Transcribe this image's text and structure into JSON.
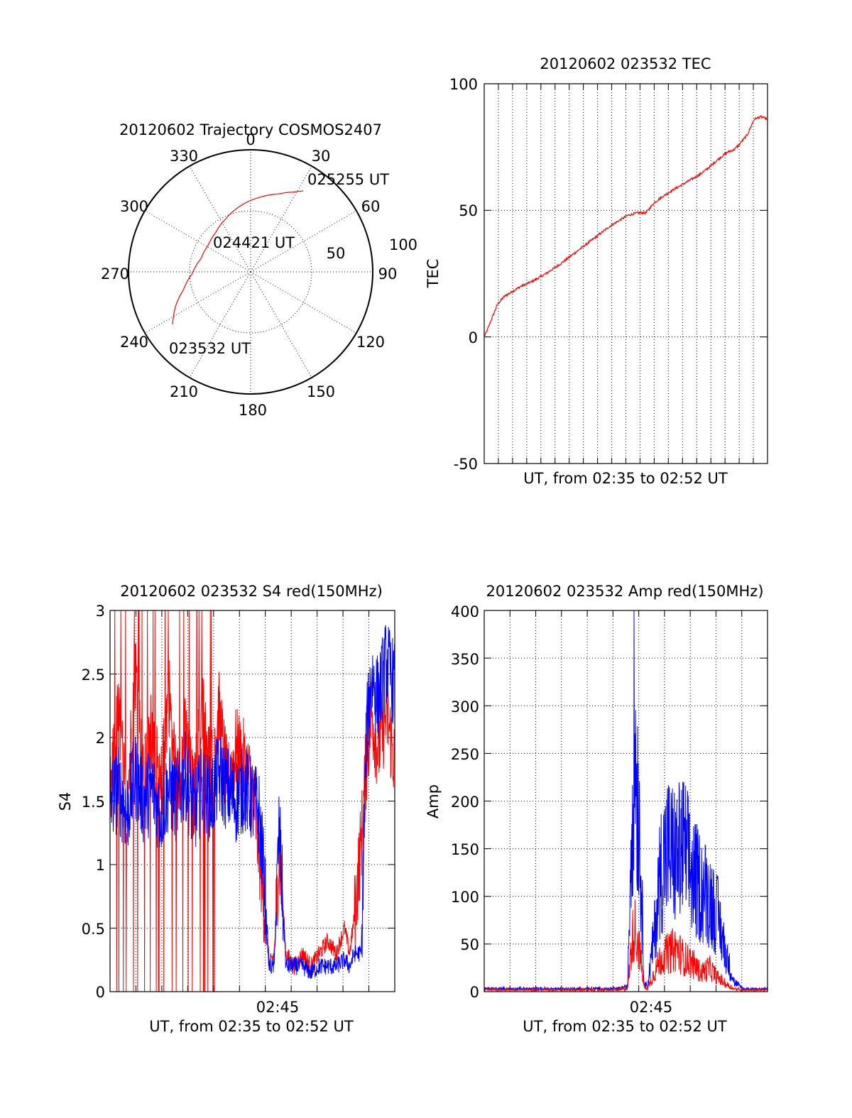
{
  "polar": {
    "title": "20120602 Trajectory COSMOS2407",
    "azimuth_labels": [
      "0",
      "30",
      "60",
      "90",
      "120",
      "150",
      "180",
      "210",
      "240",
      "270",
      "300",
      "330"
    ],
    "ring_labels": [
      "50",
      "100"
    ],
    "start_label": "023532 UT",
    "mid_label": "024421 UT",
    "end_label": "025255 UT",
    "trajectory_color": "#ff0000"
  },
  "tec": {
    "title": "20120602 023532 TEC",
    "ylabel": "TEC",
    "xlabel": "UT, from 02:35 to 02:52 UT",
    "yticks": [
      "-50",
      "0",
      "50",
      "100"
    ]
  },
  "s4": {
    "title": "20120602 023532 S4 red(150MHz)",
    "ylabel": "S4",
    "xlabel": "UT, from 02:35 to 02:52 UT",
    "xtick": "02:45",
    "yticks": [
      "0",
      "0.5",
      "1",
      "1.5",
      "2",
      "2.5",
      "3"
    ]
  },
  "amp": {
    "title": "20120602 023532 Amp red(150MHz)",
    "ylabel": "Amp",
    "xlabel": "UT, from 02:35 to 02:52 UT",
    "xtick": "02:45",
    "yticks": [
      "0",
      "50",
      "100",
      "150",
      "200",
      "250",
      "300",
      "350",
      "400"
    ]
  },
  "chart_data": [
    {
      "type": "polar",
      "title": "20120602 Trajectory COSMOS2407",
      "r_range": [
        0,
        100
      ],
      "rings": [
        50,
        100
      ],
      "theta_labels_deg": [
        0,
        30,
        60,
        90,
        120,
        150,
        180,
        210,
        240,
        270,
        300,
        330
      ],
      "series": [
        {
          "color": "#ff0000",
          "azimuth_deg": [
            236,
            245,
            255,
            268,
            285,
            302,
            318,
            335,
            352,
            8,
            20,
            28,
            33
          ],
          "radius": [
            77,
            68,
            57,
            48,
            42,
            41,
            43,
            48,
            55,
            62,
            68,
            74,
            79
          ]
        }
      ],
      "annotations": [
        "023532 UT",
        "024421 UT",
        "025255 UT"
      ]
    },
    {
      "type": "line",
      "title": "20120602 023532 TEC",
      "xlabel": "UT, from 02:35 to 02:52 UT",
      "ylabel": "TEC",
      "ylim": [
        -50,
        100
      ],
      "x_range_min": [
        0,
        17
      ],
      "grid": true,
      "series": [
        {
          "color": "#ff0000",
          "x_min": [
            0.0,
            0.2,
            0.5,
            0.8,
            1.2,
            1.7,
            2.2,
            2.9,
            3.7,
            4.6,
            5.6,
            6.6,
            7.6,
            8.6,
            9.2,
            9.7,
            10.2,
            10.6,
            11.3,
            12.1,
            12.9,
            13.5,
            14.0,
            14.6,
            15.0,
            15.3,
            15.8,
            16.2,
            16.6,
            17.0
          ],
          "y": [
            0,
            3,
            8,
            13,
            16,
            18,
            20,
            22,
            25,
            29,
            34,
            39,
            44,
            48,
            49,
            49,
            53,
            55,
            58,
            61,
            64,
            67,
            70,
            73,
            74,
            76,
            80,
            86,
            87,
            86
          ]
        }
      ]
    },
    {
      "type": "line",
      "title": "20120602 023532 S4 red(150MHz)",
      "xlabel": "UT, from 02:35 to 02:52 UT",
      "ylabel": "S4",
      "ylim": [
        0,
        3
      ],
      "x_range_min": [
        0,
        17
      ],
      "xticks": [
        {
          "x_min": 10,
          "label": "02:45"
        }
      ],
      "grid": true,
      "series": [
        {
          "color": "#ff0000",
          "x_min": [
            0.0,
            0.5,
            1.0,
            1.5,
            2.0,
            2.5,
            3.0,
            3.5,
            4.0,
            4.5,
            5.0,
            5.5,
            6.0,
            6.5,
            7.0,
            7.5,
            8.0,
            8.5,
            8.9,
            9.2,
            9.5,
            9.8,
            10.1,
            10.5,
            11.0,
            11.5,
            12.0,
            12.5,
            13.0,
            13.5,
            14.0,
            14.3,
            14.6,
            15.0,
            15.3,
            15.6,
            16.0,
            16.5,
            17.0
          ],
          "y": [
            1.5,
            2.2,
            1.4,
            2.6,
            1.6,
            2.1,
            1.5,
            2.4,
            1.6,
            2.0,
            1.5,
            2.3,
            1.7,
            2.2,
            1.6,
            1.9,
            1.8,
            1.6,
            1.1,
            0.7,
            0.2,
            0.3,
            1.1,
            0.3,
            0.2,
            0.3,
            0.2,
            0.3,
            0.4,
            0.3,
            0.5,
            0.3,
            0.6,
            1.2,
            1.8,
            2.2,
            1.9,
            2.2,
            1.8
          ]
        },
        {
          "color": "#0000ff",
          "x_min": [
            0.0,
            0.5,
            1.0,
            1.5,
            2.0,
            2.5,
            3.0,
            3.5,
            4.0,
            4.5,
            5.0,
            5.5,
            6.0,
            6.5,
            7.0,
            7.5,
            8.0,
            8.5,
            8.9,
            9.2,
            9.5,
            9.8,
            10.1,
            10.5,
            11.0,
            11.5,
            12.0,
            12.5,
            13.0,
            13.5,
            14.0,
            14.3,
            14.6,
            15.0,
            15.3,
            15.6,
            16.0,
            16.5,
            17.0
          ],
          "y": [
            1.5,
            1.6,
            1.4,
            1.7,
            1.5,
            1.6,
            1.4,
            1.6,
            1.5,
            1.7,
            1.4,
            1.6,
            1.5,
            1.7,
            1.6,
            1.5,
            1.6,
            1.5,
            1.4,
            0.9,
            0.2,
            0.2,
            1.3,
            0.2,
            0.2,
            0.2,
            0.15,
            0.2,
            0.2,
            0.2,
            0.25,
            0.2,
            0.3,
            0.3,
            2.0,
            2.5,
            2.3,
            2.6,
            2.4
          ]
        }
      ]
    },
    {
      "type": "line",
      "title": "20120602 023532 Amp red(150MHz)",
      "xlabel": "UT, from 02:35 to 02:52 UT",
      "ylabel": "Amp",
      "ylim": [
        0,
        400
      ],
      "x_range_min": [
        0,
        17
      ],
      "xticks": [
        {
          "x_min": 10,
          "label": "02:45"
        }
      ],
      "grid": true,
      "series": [
        {
          "color": "#ff0000",
          "x_min": [
            0.0,
            1.0,
            2.0,
            3.0,
            4.0,
            5.0,
            6.0,
            7.0,
            8.0,
            8.6,
            8.8,
            9.0,
            9.3,
            9.6,
            9.8,
            10.2,
            10.6,
            11.0,
            11.5,
            12.0,
            12.5,
            13.0,
            13.5,
            14.0,
            14.5,
            15.0,
            15.5,
            16.0,
            17.0
          ],
          "y": [
            2,
            2,
            2,
            2,
            2,
            2,
            2,
            2,
            2,
            3,
            40,
            70,
            45,
            5,
            3,
            20,
            35,
            40,
            45,
            35,
            30,
            20,
            25,
            15,
            8,
            3,
            2,
            2,
            2
          ]
        },
        {
          "color": "#0000ff",
          "x_min": [
            0.0,
            1.0,
            2.0,
            3.0,
            4.0,
            5.0,
            6.0,
            7.0,
            8.0,
            8.6,
            8.8,
            9.0,
            9.3,
            9.6,
            9.8,
            10.2,
            10.6,
            11.0,
            11.5,
            12.0,
            12.5,
            13.0,
            13.5,
            14.0,
            14.5,
            15.0,
            15.5,
            16.0,
            17.0
          ],
          "y": [
            3,
            3,
            3,
            3,
            3,
            3,
            3,
            3,
            3,
            5,
            150,
            270,
            180,
            10,
            5,
            60,
            130,
            150,
            140,
            150,
            120,
            110,
            100,
            80,
            40,
            10,
            3,
            3,
            3
          ]
        }
      ]
    }
  ]
}
